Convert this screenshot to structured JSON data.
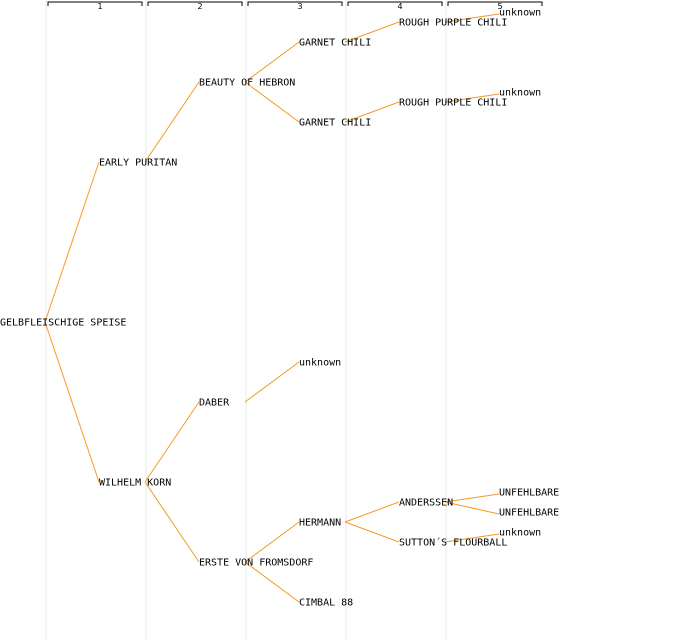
{
  "generations": [
    "1",
    "2",
    "3",
    "4",
    "5"
  ],
  "colors": {
    "edge": "#f59a23",
    "band": "#f4f4f4",
    "text": "#000000"
  },
  "nodes": [
    {
      "id": "n0",
      "label": "GELBFLEISCHIGE SPEISE",
      "gen": 0,
      "parent": null
    },
    {
      "id": "n1",
      "label": "EARLY PURITAN",
      "gen": 1,
      "parent": "n0"
    },
    {
      "id": "n2",
      "label": "WILHELM KORN",
      "gen": 1,
      "parent": "n0"
    },
    {
      "id": "n3",
      "label": "BEAUTY OF HEBRON",
      "gen": 2,
      "parent": "n1"
    },
    {
      "id": "n4",
      "label": "DABER",
      "gen": 2,
      "parent": "n2"
    },
    {
      "id": "n5",
      "label": "ERSTE VON FROMSDORF",
      "gen": 2,
      "parent": "n2"
    },
    {
      "id": "n6",
      "label": "GARNET CHILI",
      "gen": 3,
      "parent": "n3"
    },
    {
      "id": "n7",
      "label": "GARNET CHILI",
      "gen": 3,
      "parent": "n3"
    },
    {
      "id": "n8",
      "label": "unknown",
      "gen": 3,
      "parent": "n4"
    },
    {
      "id": "n9",
      "label": "HERMANN",
      "gen": 3,
      "parent": "n5"
    },
    {
      "id": "n10",
      "label": "CIMBAL 88",
      "gen": 3,
      "parent": "n5"
    },
    {
      "id": "n11",
      "label": "ROUGH PURPLE CHILI",
      "gen": 4,
      "parent": "n6"
    },
    {
      "id": "n12",
      "label": "ROUGH PURPLE CHILI",
      "gen": 4,
      "parent": "n7"
    },
    {
      "id": "n13",
      "label": "ANDERSSEN",
      "gen": 4,
      "parent": "n9"
    },
    {
      "id": "n14",
      "label": "SUTTON´S FLOURBALL",
      "gen": 4,
      "parent": "n9"
    },
    {
      "id": "n15",
      "label": "unknown",
      "gen": 5,
      "parent": "n11"
    },
    {
      "id": "n16",
      "label": "unknown",
      "gen": 5,
      "parent": "n12"
    },
    {
      "id": "n17",
      "label": "UNFEHLBARE",
      "gen": 5,
      "parent": "n13"
    },
    {
      "id": "n18",
      "label": "UNFEHLBARE",
      "gen": 5,
      "parent": "n13"
    },
    {
      "id": "n19",
      "label": "unknown",
      "gen": 5,
      "parent": "n14"
    }
  ]
}
